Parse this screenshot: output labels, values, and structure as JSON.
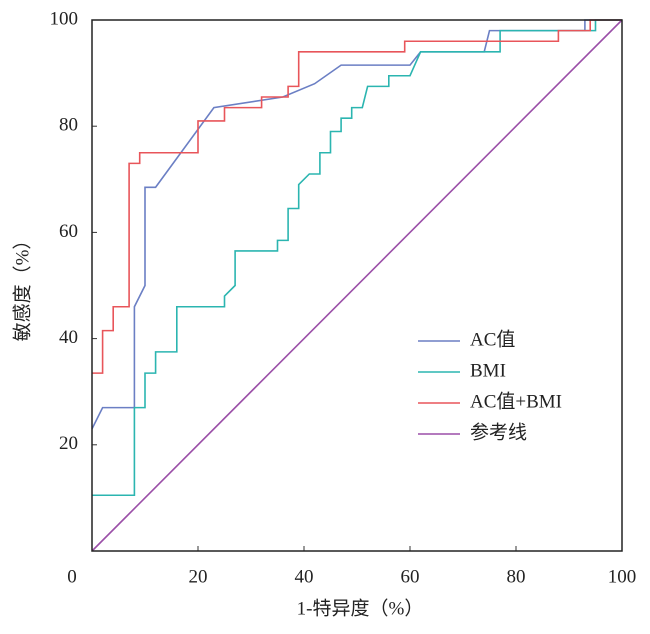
{
  "chart_data": {
    "type": "line",
    "xlabel": "1-特异度（%）",
    "ylabel": "敏感度（%）",
    "xlim": [
      0,
      100
    ],
    "ylim": [
      0,
      100
    ],
    "xticks": [
      0,
      20,
      40,
      60,
      80,
      100
    ],
    "yticks": [
      20,
      40,
      60,
      80,
      100
    ],
    "legend": "center right",
    "series": [
      {
        "name": "AC值",
        "color": "#6b7fc4",
        "x": [
          0,
          2,
          8,
          8,
          10,
          10,
          12,
          23,
          36,
          42,
          47,
          60,
          62,
          74,
          75,
          93,
          93,
          100
        ],
        "values": [
          23,
          27,
          27,
          46,
          50,
          68.5,
          68.5,
          83.5,
          85.5,
          88,
          91.5,
          91.5,
          94,
          94,
          98,
          98,
          100,
          100
        ]
      },
      {
        "name": "BMI",
        "color": "#2bb5b0",
        "x": [
          0,
          8,
          8,
          10,
          10,
          12,
          12,
          16,
          16,
          25,
          25,
          27,
          27,
          35,
          35,
          37,
          37,
          39,
          39,
          41,
          43,
          43,
          45,
          45,
          47,
          47,
          49,
          49,
          51,
          52,
          56,
          56,
          60,
          62,
          77,
          77,
          95,
          95,
          100
        ],
        "values": [
          10.5,
          10.5,
          27,
          27,
          33.5,
          33.5,
          37.5,
          37.5,
          46,
          46,
          48,
          50,
          56.5,
          56.5,
          58.5,
          58.5,
          64.5,
          64.5,
          69,
          71,
          71,
          75,
          75,
          79,
          79,
          81.5,
          81.5,
          83.5,
          83.5,
          87.5,
          87.5,
          89.5,
          89.5,
          94,
          94,
          98,
          98,
          100,
          100
        ]
      },
      {
        "name": "AC值+BMI",
        "color": "#e8555a",
        "x": [
          0,
          2,
          2,
          4,
          4,
          7,
          7,
          9,
          9,
          20,
          20,
          25,
          25,
          32,
          32,
          37,
          37,
          39,
          39,
          59,
          59,
          88,
          88,
          94,
          94,
          100
        ],
        "values": [
          33.5,
          33.5,
          41.5,
          41.5,
          46,
          46,
          73,
          73,
          75,
          75,
          81,
          81,
          83.5,
          83.5,
          85.5,
          85.5,
          87.5,
          87.5,
          94,
          94,
          96,
          96,
          98,
          98,
          100,
          100
        ]
      },
      {
        "name": "参考线",
        "color": "#9b4fa8",
        "x": [
          0,
          100
        ],
        "values": [
          0,
          100
        ]
      }
    ]
  }
}
